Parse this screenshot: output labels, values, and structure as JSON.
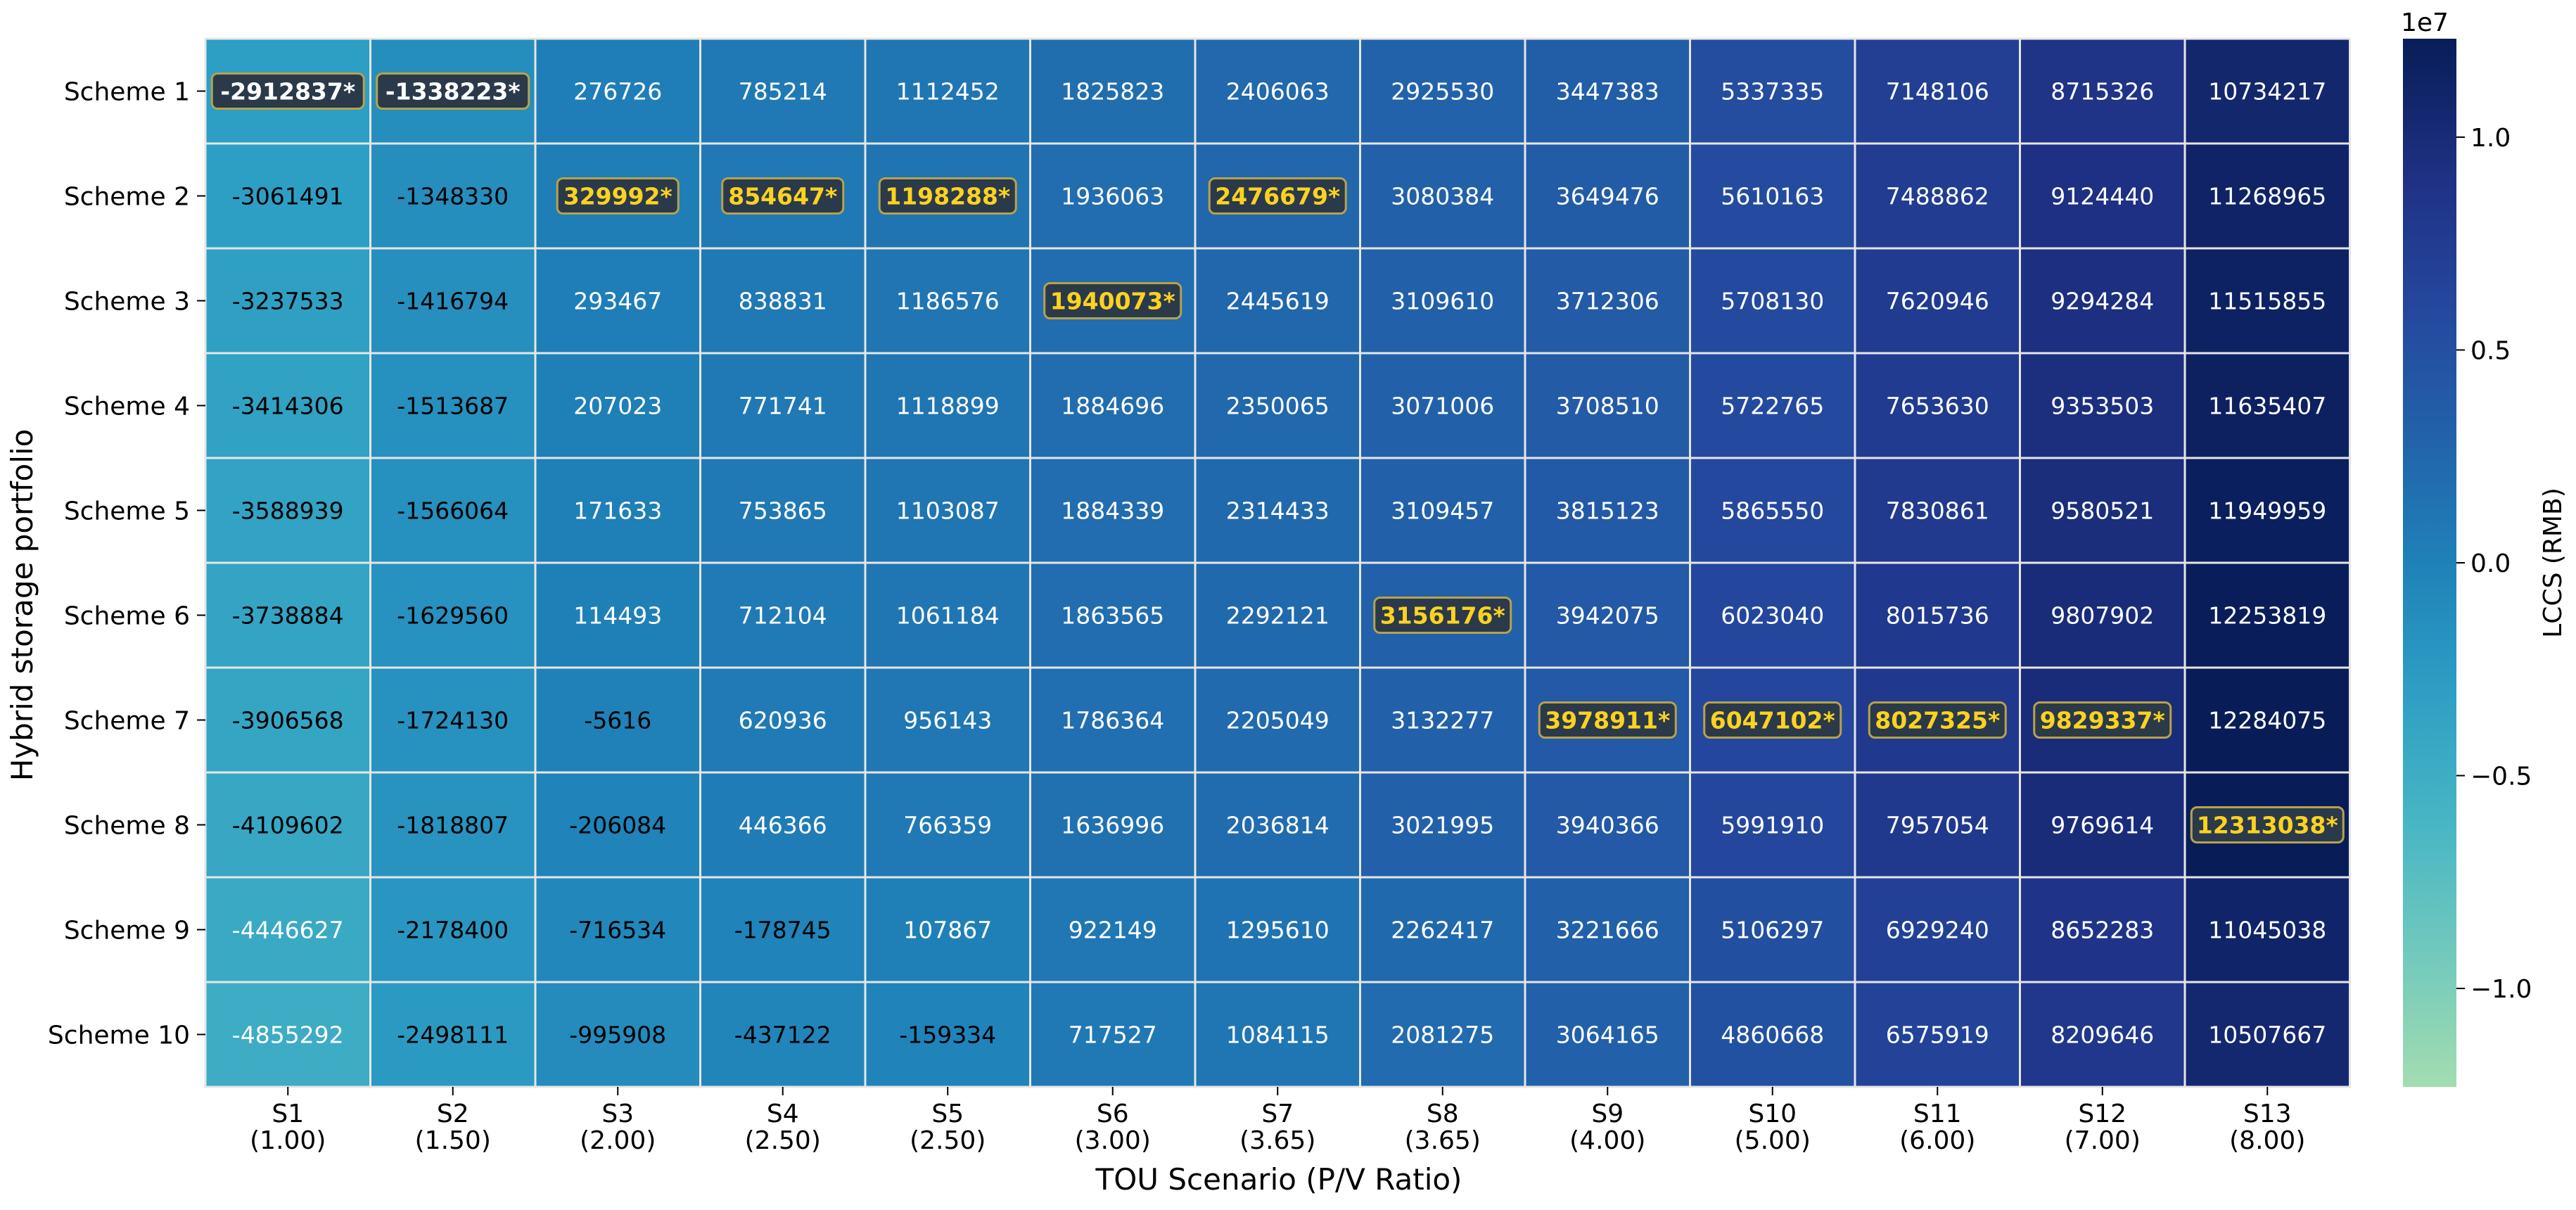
{
  "chart_data": {
    "type": "heatmap",
    "xlabel": "TOU Scenario (P/V Ratio)",
    "ylabel": "Hybrid storage portfolio",
    "colorbar_label": "LCCS (RMB)",
    "colorbar_exponent": "1e7",
    "colorbar_ticks": [
      "1.0",
      "0.5",
      "0.0",
      "−0.5",
      "−1.0"
    ],
    "colorbar_tick_values": [
      1.0,
      0.5,
      0.0,
      -0.5,
      -1.0
    ],
    "colorbar_range": [
      -1.2313038,
      1.2313038
    ],
    "colormap": "YlGnBu",
    "x_categories": [
      {
        "name": "S1",
        "ratio": "(1.00)"
      },
      {
        "name": "S2",
        "ratio": "(1.50)"
      },
      {
        "name": "S3",
        "ratio": "(2.00)"
      },
      {
        "name": "S4",
        "ratio": "(2.50)"
      },
      {
        "name": "S5",
        "ratio": "(2.50)"
      },
      {
        "name": "S6",
        "ratio": "(3.00)"
      },
      {
        "name": "S7",
        "ratio": "(3.65)"
      },
      {
        "name": "S8",
        "ratio": "(3.65)"
      },
      {
        "name": "S9",
        "ratio": "(4.00)"
      },
      {
        "name": "S10",
        "ratio": "(5.00)"
      },
      {
        "name": "S11",
        "ratio": "(6.00)"
      },
      {
        "name": "S12",
        "ratio": "(7.00)"
      },
      {
        "name": "S13",
        "ratio": "(8.00)"
      }
    ],
    "y_categories": [
      "Scheme 1",
      "Scheme 2",
      "Scheme 3",
      "Scheme 4",
      "Scheme 5",
      "Scheme 6",
      "Scheme 7",
      "Scheme 8",
      "Scheme 9",
      "Scheme 10"
    ],
    "values": [
      [
        -2912837,
        -1338223,
        276726,
        785214,
        1112452,
        1825823,
        2406063,
        2925530,
        3447383,
        5337335,
        7148106,
        8715326,
        10734217
      ],
      [
        -3061491,
        -1348330,
        329992,
        854647,
        1198288,
        1936063,
        2476679,
        3080384,
        3649476,
        5610163,
        7488862,
        9124440,
        11268965
      ],
      [
        -3237533,
        -1416794,
        293467,
        838831,
        1186576,
        1940073,
        2445619,
        3109610,
        3712306,
        5708130,
        7620946,
        9294284,
        11515855
      ],
      [
        -3414306,
        -1513687,
        207023,
        771741,
        1118899,
        1884696,
        2350065,
        3071006,
        3708510,
        5722765,
        7653630,
        9353503,
        11635407
      ],
      [
        -3588939,
        -1566064,
        171633,
        753865,
        1103087,
        1884339,
        2314433,
        3109457,
        3815123,
        5865550,
        7830861,
        9580521,
        11949959
      ],
      [
        -3738884,
        -1629560,
        114493,
        712104,
        1061184,
        1863565,
        2292121,
        3156176,
        3942075,
        6023040,
        8015736,
        9807902,
        12253819
      ],
      [
        -3906568,
        -1724130,
        -5616,
        620936,
        956143,
        1786364,
        2205049,
        3132277,
        3978911,
        6047102,
        8027325,
        9829337,
        12284075
      ],
      [
        -4109602,
        -1818807,
        -206084,
        446366,
        766359,
        1636996,
        2036814,
        3021995,
        3940366,
        5991910,
        7957054,
        9769614,
        12313038
      ],
      [
        -4446627,
        -2178400,
        -716534,
        -178745,
        107867,
        922149,
        1295610,
        2262417,
        3221666,
        5106297,
        6929240,
        8652283,
        11045038
      ],
      [
        -4855292,
        -2498111,
        -995908,
        -437122,
        -159334,
        717527,
        1084115,
        2081275,
        3064165,
        4860668,
        6575919,
        8209646,
        10507667
      ]
    ],
    "highlighted": [
      [
        0,
        0
      ],
      [
        0,
        1
      ],
      [
        1,
        2
      ],
      [
        1,
        3
      ],
      [
        1,
        4
      ],
      [
        1,
        6
      ],
      [
        2,
        5
      ],
      [
        5,
        7
      ],
      [
        6,
        8
      ],
      [
        6,
        9
      ],
      [
        6,
        10
      ],
      [
        6,
        11
      ],
      [
        7,
        12
      ]
    ],
    "highlight_marker": "*",
    "highlight_colors": {
      "box": "#2a3a4a",
      "border": "#b8a24a",
      "text_gold": "#ffd21f",
      "text_white": "#ffffff"
    }
  }
}
